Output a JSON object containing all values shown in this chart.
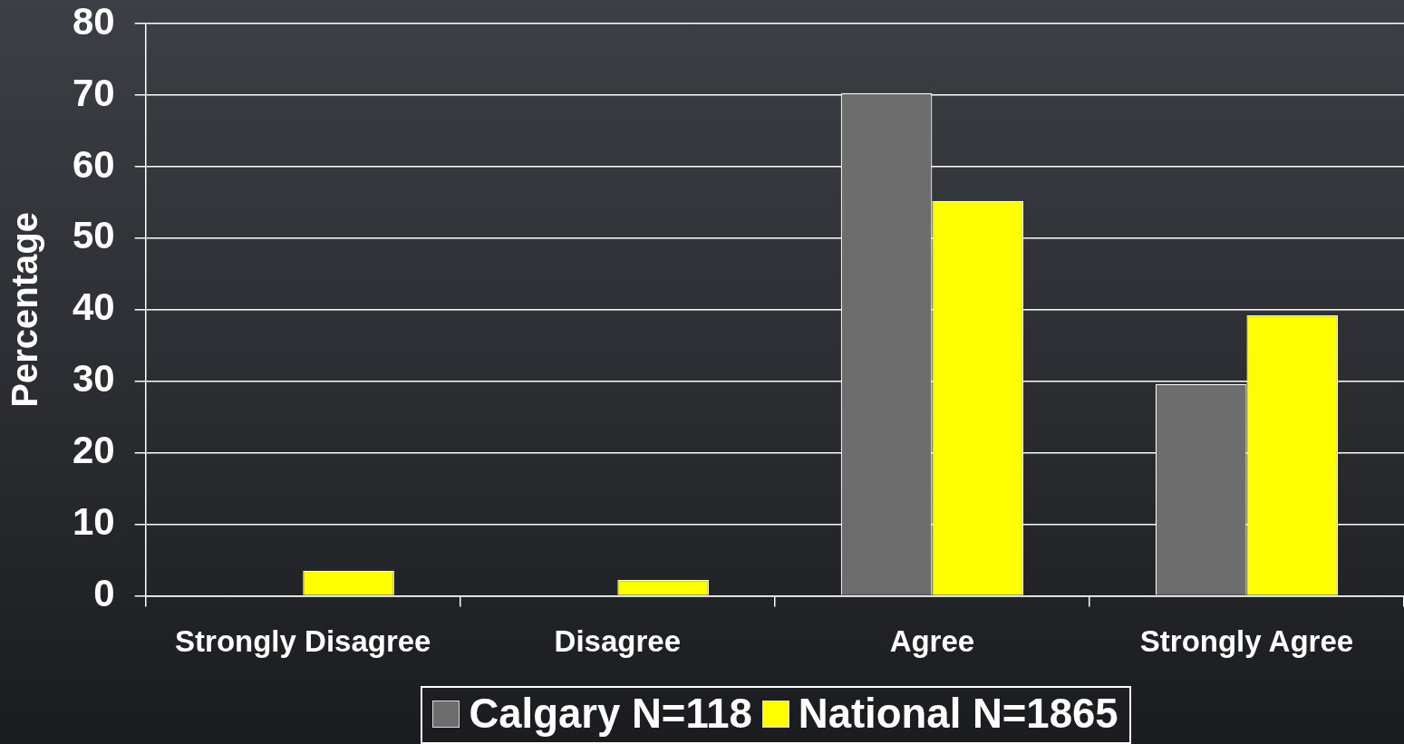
{
  "chart_data": {
    "type": "bar",
    "ylabel": "Percentage",
    "categories": [
      "Strongly Disagree",
      "Disagree",
      "Agree",
      "Strongly Agree"
    ],
    "series": [
      {
        "name": "Calgary N=118",
        "color": "#6d6d6d",
        "values": [
          0,
          0,
          70.3,
          29.6
        ]
      },
      {
        "name": "National N=1865",
        "color": "#ffff00",
        "values": [
          3.5,
          2.2,
          55.2,
          39.2
        ]
      }
    ],
    "ylim": [
      0,
      80
    ],
    "yticks": [
      0,
      10,
      20,
      30,
      40,
      50,
      60,
      70,
      80
    ],
    "grid": "y",
    "legend": "bottom"
  }
}
